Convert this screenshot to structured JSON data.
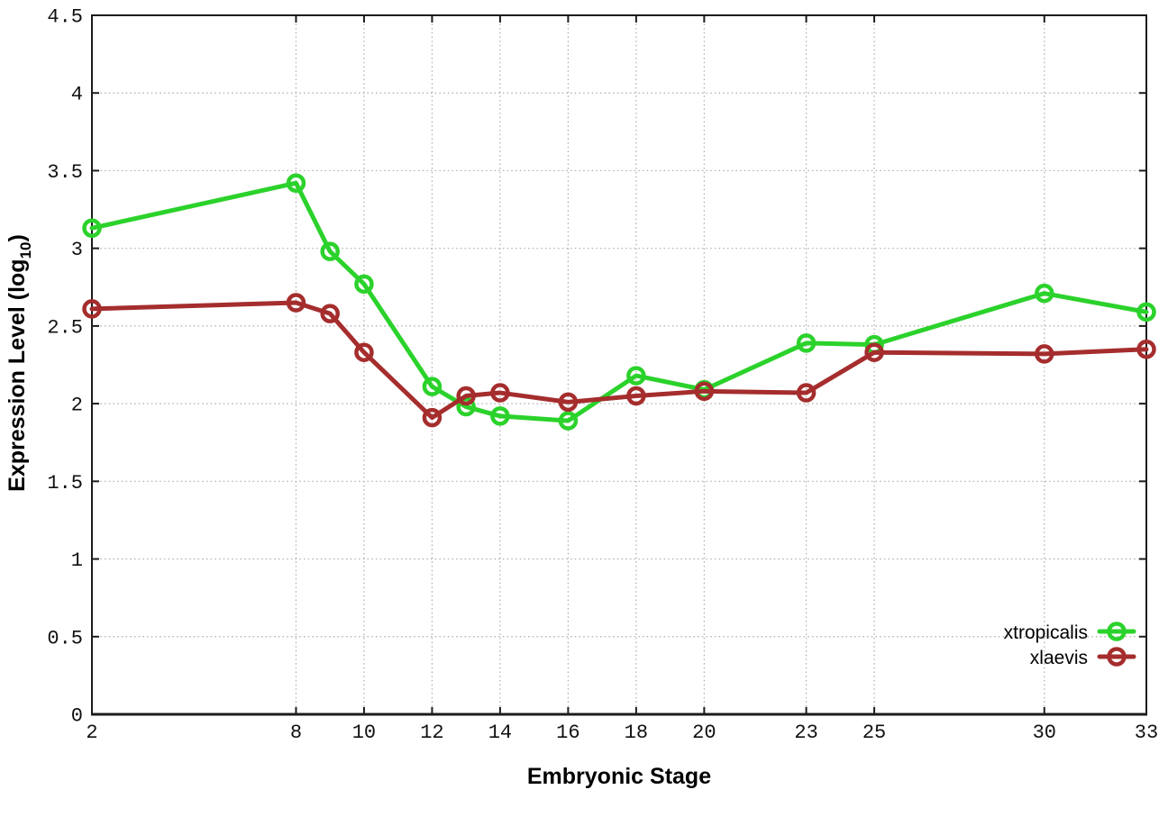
{
  "chart_data": {
    "type": "line",
    "title": "",
    "xlabel": "Embryonic Stage",
    "ylabel": "Expression Level (log10)",
    "ylabel_main": "Expression Level (log",
    "ylabel_sub": "10",
    "ylabel_end": ")",
    "xlim": [
      2,
      33
    ],
    "ylim": [
      0,
      4.5
    ],
    "grid": true,
    "legend_position": "inside-right-lower",
    "colors": {
      "background": "#ffffff",
      "frame": "#1c1c1c",
      "grid": "#ababab",
      "xtropicalis": "#2bd22b",
      "xlaevis": "#a52d2d"
    },
    "x_ticks": {
      "values": [
        2,
        8,
        10,
        12,
        14,
        16,
        18,
        20,
        23,
        25,
        30,
        33
      ],
      "labels": [
        "2",
        "8",
        "10",
        "12",
        "14",
        "16",
        "18",
        "20",
        "23",
        "25",
        "30",
        "33"
      ]
    },
    "y_ticks": {
      "values": [
        0,
        0.5,
        1,
        1.5,
        2,
        2.5,
        3,
        3.5,
        4,
        4.5
      ],
      "labels": [
        "0",
        "0.5",
        "1",
        "1.5",
        "2",
        "2.5",
        "3",
        "3.5",
        "4",
        "4.5"
      ]
    },
    "series": [
      {
        "name": "xtropicalis",
        "color": "#2bd22b",
        "marker": "open-circle",
        "x": [
          2,
          8,
          9,
          10,
          12,
          13,
          14,
          16,
          18,
          20,
          23,
          25,
          30,
          33
        ],
        "y": [
          3.13,
          3.42,
          2.98,
          2.77,
          2.11,
          1.98,
          1.92,
          1.89,
          2.18,
          2.09,
          2.39,
          2.38,
          2.71,
          2.59
        ]
      },
      {
        "name": "xlaevis",
        "color": "#a52d2d",
        "marker": "open-circle",
        "x": [
          2,
          8,
          9,
          10,
          12,
          13,
          14,
          16,
          18,
          20,
          23,
          25,
          30,
          33
        ],
        "y": [
          2.61,
          2.65,
          2.58,
          2.33,
          1.91,
          2.05,
          2.07,
          2.01,
          2.05,
          2.08,
          2.07,
          2.33,
          2.32,
          2.35
        ]
      }
    ]
  }
}
